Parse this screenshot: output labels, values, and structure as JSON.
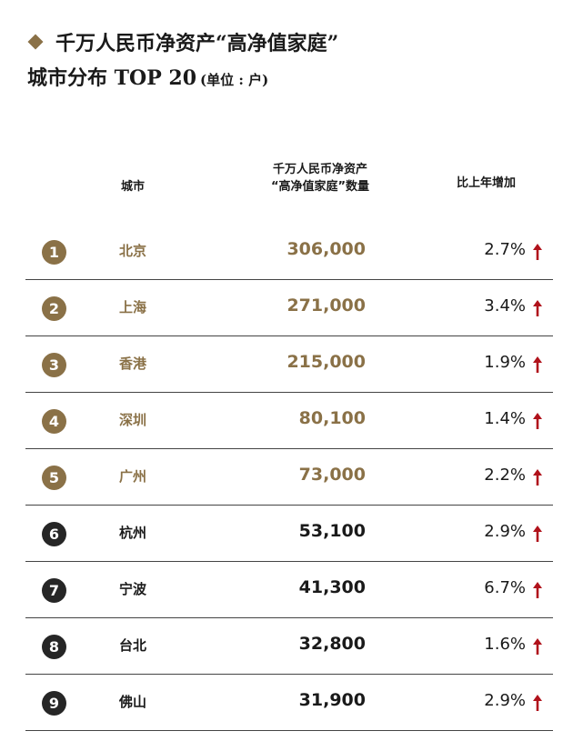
{
  "title": {
    "line1": "千万人民币净资产“高净值家庭”",
    "line2": "城市分布 TOP 20",
    "unit": "(单位 : 户)"
  },
  "headers": {
    "city": "城市",
    "count_line1": "千万人民币净资产",
    "count_line2": "“高净值家庭”数量",
    "growth": "比上年增加"
  },
  "colors": {
    "gold": "#8a7147",
    "dark": "#262626",
    "arrow_red": "#b0121b"
  },
  "rows": [
    {
      "rank": "1",
      "city": "北京",
      "count": "306,000",
      "growth": "2.7%",
      "tier": "gold"
    },
    {
      "rank": "2",
      "city": "上海",
      "count": "271,000",
      "growth": "3.4%",
      "tier": "gold"
    },
    {
      "rank": "3",
      "city": "香港",
      "count": "215,000",
      "growth": "1.9%",
      "tier": "gold"
    },
    {
      "rank": "4",
      "city": "深圳",
      "count": "80,100",
      "growth": "1.4%",
      "tier": "gold"
    },
    {
      "rank": "5",
      "city": "广州",
      "count": "73,000",
      "growth": "2.2%",
      "tier": "gold"
    },
    {
      "rank": "6",
      "city": "杭州",
      "count": "53,100",
      "growth": "2.9%",
      "tier": "dark"
    },
    {
      "rank": "7",
      "city": "宁波",
      "count": "41,300",
      "growth": "6.7%",
      "tier": "dark"
    },
    {
      "rank": "8",
      "city": "台北",
      "count": "32,800",
      "growth": "1.6%",
      "tier": "dark"
    },
    {
      "rank": "9",
      "city": "佛山",
      "count": "31,900",
      "growth": "2.9%",
      "tier": "dark"
    }
  ],
  "trend_icon": "up-arrow-icon"
}
